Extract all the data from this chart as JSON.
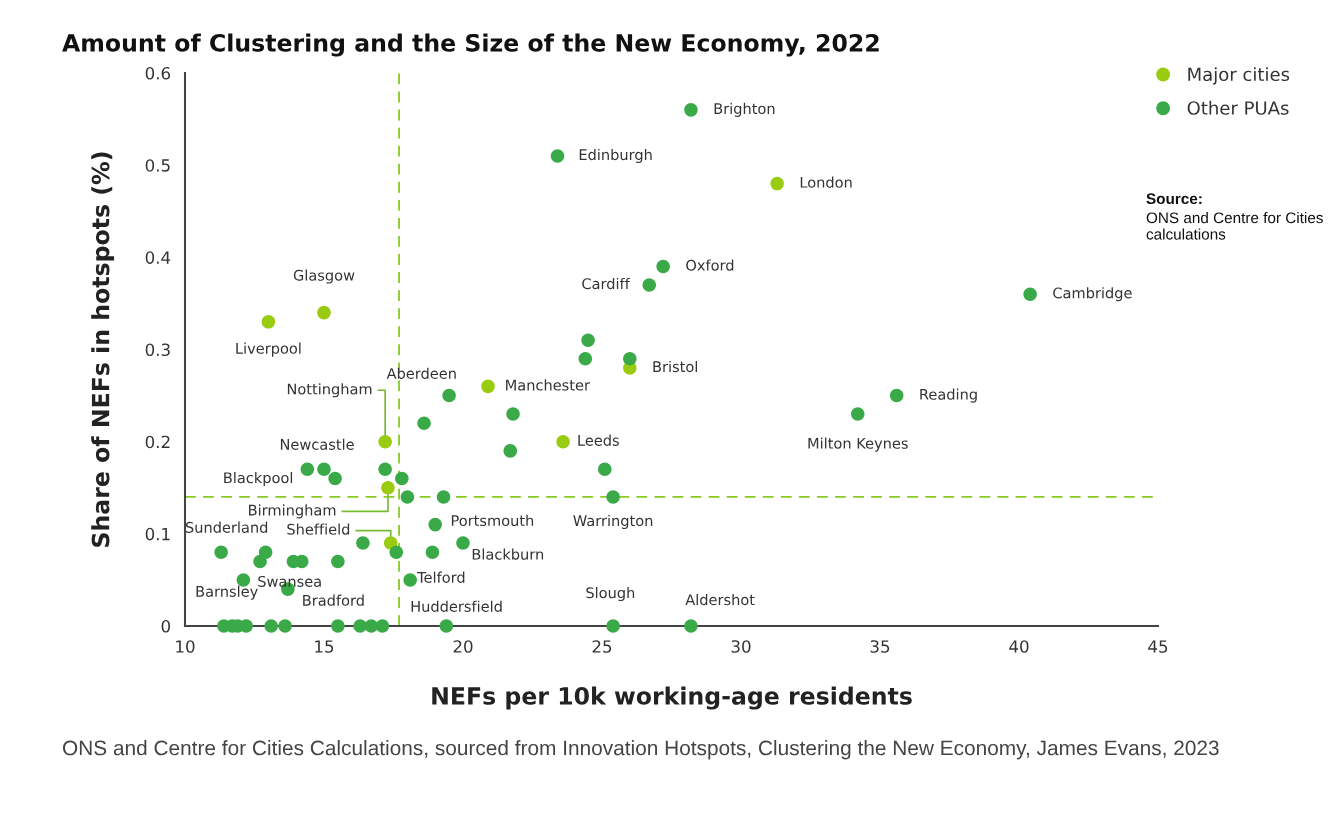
{
  "chart_data": {
    "type": "scatter",
    "title": "Amount of Clustering and the Size of the New Economy, 2022",
    "xlabel": "NEFs per 10k working-age residents",
    "ylabel": "Share of NEFs in hotspots (%)",
    "xlim": [
      10,
      45
    ],
    "xticks": [
      10,
      15,
      20,
      25,
      30,
      35,
      40,
      45
    ],
    "ylim": [
      0,
      0.6
    ],
    "yticks": [
      0,
      0.1,
      0.2,
      0.3,
      0.4,
      0.5,
      0.6
    ],
    "grid": false,
    "legend": "top right",
    "marker": "circle",
    "series": [
      {
        "name": "Major cities",
        "color": "#99cc11",
        "x": [
          13.0,
          15.0,
          17.2,
          17.3,
          17.4,
          20.9,
          23.6,
          26.0,
          31.3
        ],
        "values": [
          0.33,
          0.34,
          0.2,
          0.15,
          0.09,
          0.26,
          0.2,
          0.28,
          0.48
        ]
      },
      {
        "name": "Other PUAs",
        "color": "#3aaa48",
        "x": [
          28.2,
          23.4,
          27.2,
          26.7,
          40.4,
          35.6,
          34.2,
          24.5,
          24.4,
          26.0,
          21.8,
          21.7,
          25.1,
          25.4,
          19.5,
          18.6,
          14.4,
          15.0,
          15.4,
          17.2,
          17.8,
          18.0,
          19.3,
          19.0,
          20.0,
          18.9,
          18.1,
          17.6,
          16.4,
          15.5,
          11.3,
          12.9,
          12.7,
          13.9,
          14.2,
          12.1,
          13.7,
          11.4,
          11.7,
          11.9,
          12.2,
          13.1,
          13.6,
          15.5,
          16.3,
          16.7,
          17.1,
          19.4,
          25.4,
          28.2
        ],
        "values": [
          0.56,
          0.51,
          0.39,
          0.37,
          0.36,
          0.25,
          0.23,
          0.31,
          0.29,
          0.29,
          0.23,
          0.19,
          0.17,
          0.14,
          0.25,
          0.22,
          0.17,
          0.17,
          0.16,
          0.17,
          0.16,
          0.14,
          0.14,
          0.11,
          0.09,
          0.08,
          0.05,
          0.08,
          0.09,
          0.07,
          0.08,
          0.08,
          0.07,
          0.07,
          0.07,
          0.05,
          0.04,
          0,
          0,
          0,
          0,
          0,
          0,
          0,
          0,
          0,
          0,
          0,
          0,
          0
        ]
      }
    ],
    "ref_lines": [
      {
        "axis": "x",
        "value": 17.7,
        "color": "#88cc22",
        "line_style": "dashed"
      },
      {
        "axis": "y",
        "value": 0.14,
        "color": "#88cc22",
        "line_style": "dashed"
      }
    ],
    "annotations": [
      {
        "text": "Brighton",
        "x": 28.2,
        "y": 0.56
      },
      {
        "text": "Edinburgh",
        "x": 23.4,
        "y": 0.51
      },
      {
        "text": "London",
        "x": 31.3,
        "y": 0.48
      },
      {
        "text": "Oxford",
        "x": 27.2,
        "y": 0.39
      },
      {
        "text": "Cardiff",
        "x": 26.7,
        "y": 0.37
      },
      {
        "text": "Cambridge",
        "x": 40.4,
        "y": 0.36
      },
      {
        "text": "Glasgow",
        "x": 15.0,
        "y": 0.34
      },
      {
        "text": "Liverpool",
        "x": 13.0,
        "y": 0.33
      },
      {
        "text": "Bristol",
        "x": 26.0,
        "y": 0.28
      },
      {
        "text": "Aberdeen",
        "x": 19.5,
        "y": 0.25
      },
      {
        "text": "Manchester",
        "x": 20.9,
        "y": 0.26
      },
      {
        "text": "Reading",
        "x": 35.6,
        "y": 0.25
      },
      {
        "text": "Milton Keynes",
        "x": 34.2,
        "y": 0.23
      },
      {
        "text": "Nottingham",
        "x": 17.2,
        "y": 0.2
      },
      {
        "text": "Leeds",
        "x": 23.6,
        "y": 0.2
      },
      {
        "text": "Newcastle",
        "x": 15.0,
        "y": 0.17
      },
      {
        "text": "Blackpool",
        "x": 14.4,
        "y": 0.17
      },
      {
        "text": "Birmingham",
        "x": 17.3,
        "y": 0.15
      },
      {
        "text": "Warrington",
        "x": 25.4,
        "y": 0.14
      },
      {
        "text": "Portsmouth",
        "x": 19.0,
        "y": 0.11
      },
      {
        "text": "Sheffield",
        "x": 17.4,
        "y": 0.09
      },
      {
        "text": "Sunderland",
        "x": 11.3,
        "y": 0.08
      },
      {
        "text": "Blackburn",
        "x": 20.0,
        "y": 0.09
      },
      {
        "text": "Telford",
        "x": 18.9,
        "y": 0.08
      },
      {
        "text": "Swansea",
        "x": 12.1,
        "y": 0.05
      },
      {
        "text": "Huddersfield",
        "x": 18.1,
        "y": 0.05
      },
      {
        "text": "Bradford",
        "x": 13.7,
        "y": 0.04
      },
      {
        "text": "Barnsley",
        "x": 11.4,
        "y": 0
      },
      {
        "text": "Slough",
        "x": 25.4,
        "y": 0
      },
      {
        "text": "Aldershot",
        "x": 28.2,
        "y": 0
      },
      "Source:",
      "ONS and Centre for Cities calculations",
      "ONS and Centre for Cities Calculations, sourced from Innovation Hotspots, Clustering the New Economy, James Evans, 2023"
    ]
  }
}
